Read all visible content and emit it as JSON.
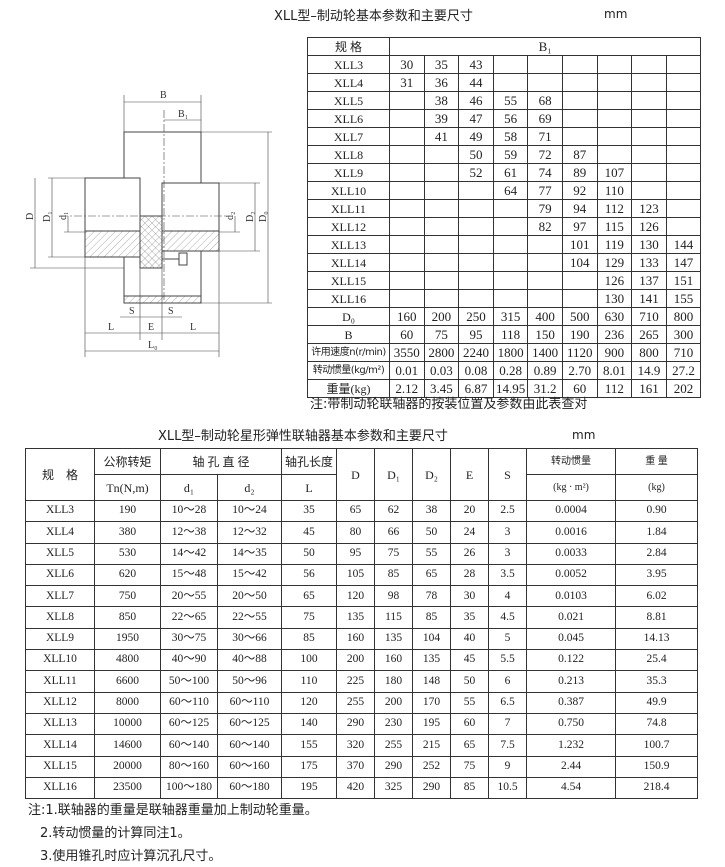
{
  "top": {
    "title": "XLL型–制动轮基本参数和主要尺寸",
    "unit": "mm",
    "header_spec": "规 格",
    "header_b1": "B₁",
    "rows": [
      {
        "spec": "XLL3",
        "v": [
          "30",
          "35",
          "43",
          "",
          "",
          "",
          "",
          "",
          ""
        ]
      },
      {
        "spec": "XLL4",
        "v": [
          "31",
          "36",
          "44",
          "",
          "",
          "",
          "",
          "",
          ""
        ]
      },
      {
        "spec": "XLL5",
        "v": [
          "",
          "38",
          "46",
          "55",
          "68",
          "",
          "",
          "",
          ""
        ]
      },
      {
        "spec": "XLL6",
        "v": [
          "",
          "39",
          "47",
          "56",
          "69",
          "",
          "",
          "",
          ""
        ]
      },
      {
        "spec": "XLL7",
        "v": [
          "",
          "41",
          "49",
          "58",
          "71",
          "",
          "",
          "",
          ""
        ]
      },
      {
        "spec": "XLL8",
        "v": [
          "",
          "",
          "50",
          "59",
          "72",
          "87",
          "",
          "",
          ""
        ]
      },
      {
        "spec": "XLL9",
        "v": [
          "",
          "",
          "52",
          "61",
          "74",
          "89",
          "107",
          "",
          ""
        ]
      },
      {
        "spec": "XLL10",
        "v": [
          "",
          "",
          "",
          "64",
          "77",
          "92",
          "110",
          "",
          ""
        ]
      },
      {
        "spec": "XLL11",
        "v": [
          "",
          "",
          "",
          "",
          "79",
          "94",
          "112",
          "123",
          ""
        ]
      },
      {
        "spec": "XLL12",
        "v": [
          "",
          "",
          "",
          "",
          "82",
          "97",
          "115",
          "126",
          ""
        ]
      },
      {
        "spec": "XLL13",
        "v": [
          "",
          "",
          "",
          "",
          "",
          "101",
          "119",
          "130",
          "144"
        ]
      },
      {
        "spec": "XLL14",
        "v": [
          "",
          "",
          "",
          "",
          "",
          "104",
          "129",
          "133",
          "147"
        ]
      },
      {
        "spec": "XLL15",
        "v": [
          "",
          "",
          "",
          "",
          "",
          "",
          "126",
          "137",
          "151"
        ]
      },
      {
        "spec": "XLL16",
        "v": [
          "",
          "",
          "",
          "",
          "",
          "",
          "130",
          "141",
          "155"
        ]
      },
      {
        "spec": "D₀",
        "v": [
          "160",
          "200",
          "250",
          "315",
          "400",
          "500",
          "630",
          "710",
          "800"
        ]
      },
      {
        "spec": "B",
        "v": [
          "60",
          "75",
          "95",
          "118",
          "150",
          "190",
          "236",
          "265",
          "300"
        ]
      },
      {
        "spec": "许用速度n(r/min)",
        "small": true,
        "v": [
          "3550",
          "2800",
          "2240",
          "1800",
          "1400",
          "1120",
          "900",
          "800",
          "710"
        ]
      },
      {
        "spec": "转动惯量(kg/m²)",
        "small": true,
        "v": [
          "0.01",
          "0.03",
          "0.08",
          "0.28",
          "0.89",
          "2.70",
          "8.01",
          "14.9",
          "27.2"
        ]
      },
      {
        "spec": "重量(kg)",
        "v": [
          "2.12",
          "3.45",
          "6.87",
          "14.95",
          "31.2",
          "60",
          "112",
          "161",
          "202"
        ]
      }
    ],
    "note": "注:带制动轮联轴器的按装位置及参数由此表查对"
  },
  "diagram": {
    "labels": {
      "B": "B",
      "B1": "B₁",
      "D": "D",
      "D1": "D₁",
      "d1": "d₁",
      "d2": "d₂",
      "D2": "D₂",
      "D0": "D₀",
      "S": "S",
      "E": "E",
      "L": "L",
      "L0": "L₀"
    },
    "line_color": "#444444"
  },
  "bottom": {
    "title": "XLL型–制动轮星形弹性联轴器基本参数和主要尺寸",
    "unit": "mm",
    "headers": {
      "spec": "规　格",
      "torque": "公称转矩",
      "torque_unit": "Tn(N,m)",
      "bore_d": "轴 孔 直 径",
      "d1": "d₁",
      "d2": "d₂",
      "bore_len": "轴孔长度",
      "L": "L",
      "D": "D",
      "D1": "D₁",
      "D2": "D₂",
      "E": "E",
      "S": "S",
      "inertia": "转动惯量",
      "inertia_unit": "(kg · m²)",
      "weight": "重 量",
      "weight_unit": "(kg)"
    },
    "rows": [
      [
        "XLL3",
        "190",
        "10～28",
        "10～24",
        "35",
        "65",
        "62",
        "38",
        "20",
        "2.5",
        "0.0004",
        "0.90"
      ],
      [
        "XLL4",
        "380",
        "12～38",
        "12～32",
        "45",
        "80",
        "66",
        "50",
        "24",
        "3",
        "0.0016",
        "1.84"
      ],
      [
        "XLL5",
        "530",
        "14～42",
        "14～35",
        "50",
        "95",
        "75",
        "55",
        "26",
        "3",
        "0.0033",
        "2.84"
      ],
      [
        "XLL6",
        "620",
        "15～48",
        "15～42",
        "56",
        "105",
        "85",
        "65",
        "28",
        "3.5",
        "0.0052",
        "3.95"
      ],
      [
        "XLL7",
        "750",
        "20～55",
        "20～50",
        "65",
        "120",
        "98",
        "78",
        "30",
        "4",
        "0.0103",
        "6.02"
      ],
      [
        "XLL8",
        "850",
        "22～65",
        "22～55",
        "75",
        "135",
        "115",
        "85",
        "35",
        "4.5",
        "0.021",
        "8.81"
      ],
      [
        "XLL9",
        "1950",
        "30～75",
        "30～66",
        "85",
        "160",
        "135",
        "104",
        "40",
        "5",
        "0.045",
        "14.13"
      ],
      [
        "XLL10",
        "4800",
        "40～90",
        "40～88",
        "100",
        "200",
        "160",
        "135",
        "45",
        "5.5",
        "0.122",
        "25.4"
      ],
      [
        "XLL11",
        "6600",
        "50～100",
        "50～96",
        "110",
        "225",
        "180",
        "148",
        "50",
        "6",
        "0.213",
        "35.3"
      ],
      [
        "XLL12",
        "8000",
        "60～110",
        "60～110",
        "120",
        "255",
        "200",
        "170",
        "55",
        "6.5",
        "0.387",
        "49.9"
      ],
      [
        "XLL13",
        "10000",
        "60～125",
        "60～125",
        "140",
        "290",
        "230",
        "195",
        "60",
        "7",
        "0.750",
        "74.8"
      ],
      [
        "XLL14",
        "14600",
        "60～140",
        "60～140",
        "155",
        "320",
        "255",
        "215",
        "65",
        "7.5",
        "1.232",
        "100.7"
      ],
      [
        "XLL15",
        "20000",
        "80～160",
        "60～160",
        "175",
        "370",
        "290",
        "252",
        "75",
        "9",
        "2.44",
        "150.9"
      ],
      [
        "XLL16",
        "23500",
        "100～180",
        "60～180",
        "195",
        "420",
        "325",
        "290",
        "85",
        "10.5",
        "4.54",
        "218.4"
      ]
    ],
    "notes": [
      "注:1.联轴器的重量是联轴器重量加上制动轮重量。",
      "2.转动惯量的计算同注1。",
      "3.使用锥孔时应计算沉孔尺寸。"
    ]
  }
}
